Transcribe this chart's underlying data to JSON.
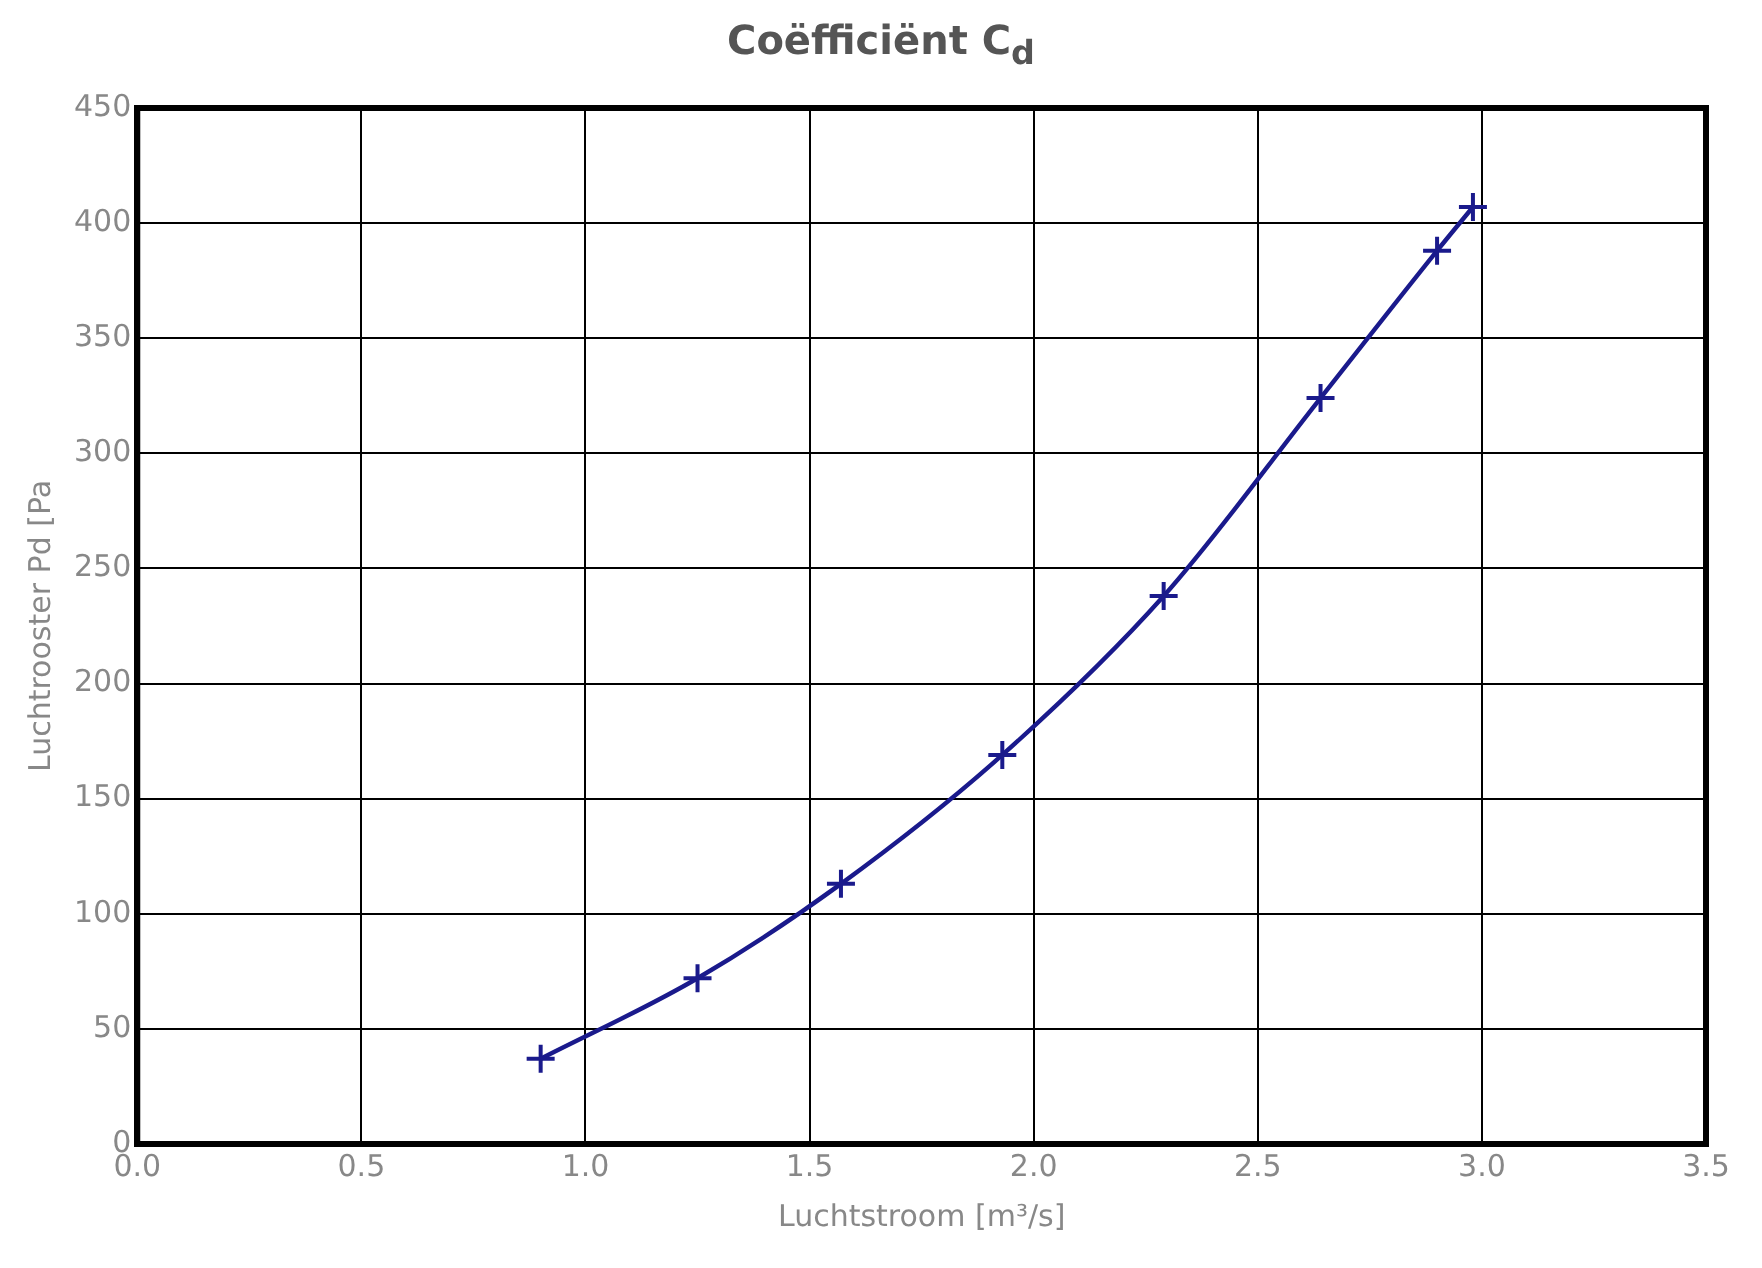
{
  "chart_data": {
    "type": "line",
    "title": "Coëfficiënt C$_{d}$",
    "xlabel": "Luchtstroom [m³/s]",
    "ylabel": "Luchtrooster Pd [Pa",
    "series": [
      {
        "color": "#1a1a8c",
        "x": [
          0.9,
          1.25,
          1.57,
          1.93,
          2.29,
          2.64,
          2.9,
          2.98
        ],
        "values": [
          37,
          72,
          113,
          169,
          238,
          324,
          388,
          407
        ]
      }
    ],
    "xlim": [
      0,
      3.5
    ],
    "xticks": [
      {
        "value": 0,
        "label": "0.0"
      },
      {
        "value": 0.5,
        "label": "0.5"
      },
      {
        "value": 1,
        "label": "1.0"
      },
      {
        "value": 1.5,
        "label": "1.5"
      },
      {
        "value": 2,
        "label": "2.0"
      },
      {
        "value": 2.5,
        "label": "2.5"
      },
      {
        "value": 3,
        "label": "3.0"
      },
      {
        "value": 3.5,
        "label": "3.5"
      }
    ],
    "ylim": [
      0,
      450
    ],
    "yticks": [
      0,
      50,
      100,
      150,
      200,
      250,
      300,
      350,
      400,
      450
    ],
    "grid": true,
    "marker": "cross",
    "line_style": "solid"
  }
}
